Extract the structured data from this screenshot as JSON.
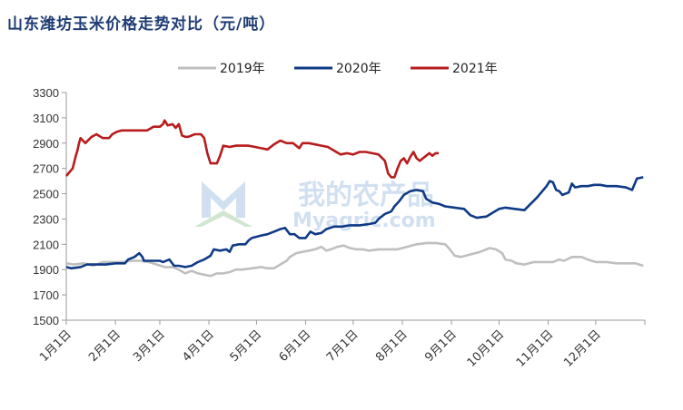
{
  "title": "山东潍坊玉米价格走势对比（元/吨）",
  "watermark": {
    "cn": "我的农产品",
    "en": "Myagric.com"
  },
  "colors": {
    "title": "#1f3c74",
    "s2019": "#bfbfbf",
    "s2020": "#0f3a86",
    "s2021": "#b81c1c"
  },
  "chart_data": {
    "type": "line",
    "title": "山东潍坊玉米价格走势对比（元/吨）",
    "ylim": [
      1500,
      3300
    ],
    "yticks": [
      1500,
      1700,
      1900,
      2100,
      2300,
      2500,
      2700,
      2900,
      3100,
      3300
    ],
    "xlim": [
      1,
      366
    ],
    "xticks": [
      {
        "label": "1月1日",
        "day": 1
      },
      {
        "label": "2月1日",
        "day": 32
      },
      {
        "label": "3月1日",
        "day": 60
      },
      {
        "label": "4月1日",
        "day": 91
      },
      {
        "label": "5月1日",
        "day": 121
      },
      {
        "label": "6月1日",
        "day": 152
      },
      {
        "label": "7月1日",
        "day": 182
      },
      {
        "label": "8月1日",
        "day": 213
      },
      {
        "label": "9月1日",
        "day": 244
      },
      {
        "label": "10月1日",
        "day": 274
      },
      {
        "label": "11月1日",
        "day": 305
      },
      {
        "label": "12月1日",
        "day": 335
      }
    ],
    "legend_position": "top-center",
    "grid": false,
    "series": [
      {
        "name": "2019年",
        "color": "#bfbfbf",
        "points": [
          [
            1,
            1950
          ],
          [
            6,
            1940
          ],
          [
            12,
            1950
          ],
          [
            18,
            1930
          ],
          [
            24,
            1960
          ],
          [
            30,
            1960
          ],
          [
            36,
            1960
          ],
          [
            42,
            1970
          ],
          [
            48,
            1970
          ],
          [
            53,
            1960
          ],
          [
            58,
            1940
          ],
          [
            63,
            1920
          ],
          [
            68,
            1920
          ],
          [
            72,
            1900
          ],
          [
            76,
            1870
          ],
          [
            80,
            1890
          ],
          [
            84,
            1870
          ],
          [
            88,
            1860
          ],
          [
            92,
            1850
          ],
          [
            96,
            1870
          ],
          [
            100,
            1870
          ],
          [
            104,
            1880
          ],
          [
            108,
            1900
          ],
          [
            112,
            1900
          ],
          [
            118,
            1910
          ],
          [
            124,
            1920
          ],
          [
            128,
            1910
          ],
          [
            132,
            1910
          ],
          [
            136,
            1940
          ],
          [
            140,
            1970
          ],
          [
            142,
            2000
          ],
          [
            146,
            2030
          ],
          [
            150,
            2040
          ],
          [
            154,
            2050
          ],
          [
            158,
            2060
          ],
          [
            162,
            2080
          ],
          [
            165,
            2050
          ],
          [
            168,
            2060
          ],
          [
            172,
            2080
          ],
          [
            176,
            2090
          ],
          [
            180,
            2070
          ],
          [
            184,
            2060
          ],
          [
            188,
            2060
          ],
          [
            192,
            2050
          ],
          [
            198,
            2060
          ],
          [
            204,
            2060
          ],
          [
            210,
            2060
          ],
          [
            216,
            2080
          ],
          [
            222,
            2100
          ],
          [
            228,
            2110
          ],
          [
            234,
            2110
          ],
          [
            240,
            2100
          ],
          [
            243,
            2060
          ],
          [
            246,
            2010
          ],
          [
            250,
            2000
          ],
          [
            256,
            2020
          ],
          [
            262,
            2040
          ],
          [
            268,
            2070
          ],
          [
            272,
            2060
          ],
          [
            276,
            2030
          ],
          [
            278,
            1980
          ],
          [
            282,
            1970
          ],
          [
            285,
            1950
          ],
          [
            290,
            1940
          ],
          [
            296,
            1960
          ],
          [
            302,
            1960
          ],
          [
            308,
            1960
          ],
          [
            312,
            1980
          ],
          [
            315,
            1970
          ],
          [
            320,
            2000
          ],
          [
            326,
            2000
          ],
          [
            330,
            1980
          ],
          [
            335,
            1960
          ],
          [
            342,
            1960
          ],
          [
            348,
            1950
          ],
          [
            354,
            1950
          ],
          [
            360,
            1950
          ],
          [
            365,
            1930
          ]
        ]
      },
      {
        "name": "2020年",
        "color": "#0f3a86",
        "points": [
          [
            1,
            1920
          ],
          [
            4,
            1910
          ],
          [
            10,
            1920
          ],
          [
            14,
            1940
          ],
          [
            20,
            1940
          ],
          [
            26,
            1940
          ],
          [
            32,
            1950
          ],
          [
            38,
            1950
          ],
          [
            40,
            1980
          ],
          [
            44,
            2000
          ],
          [
            47,
            2030
          ],
          [
            49,
            2000
          ],
          [
            50,
            1970
          ],
          [
            55,
            1970
          ],
          [
            60,
            1970
          ],
          [
            62,
            1960
          ],
          [
            66,
            1980
          ],
          [
            69,
            1930
          ],
          [
            72,
            1930
          ],
          [
            76,
            1920
          ],
          [
            80,
            1930
          ],
          [
            84,
            1960
          ],
          [
            88,
            1980
          ],
          [
            92,
            2010
          ],
          [
            94,
            2060
          ],
          [
            98,
            2050
          ],
          [
            102,
            2060
          ],
          [
            104,
            2040
          ],
          [
            106,
            2090
          ],
          [
            110,
            2100
          ],
          [
            114,
            2100
          ],
          [
            116,
            2130
          ],
          [
            118,
            2150
          ],
          [
            124,
            2170
          ],
          [
            128,
            2180
          ],
          [
            132,
            2200
          ],
          [
            136,
            2220
          ],
          [
            139,
            2230
          ],
          [
            142,
            2180
          ],
          [
            145,
            2180
          ],
          [
            148,
            2150
          ],
          [
            152,
            2150
          ],
          [
            155,
            2200
          ],
          [
            158,
            2180
          ],
          [
            162,
            2190
          ],
          [
            165,
            2220
          ],
          [
            170,
            2240
          ],
          [
            175,
            2240
          ],
          [
            180,
            2250
          ],
          [
            186,
            2250
          ],
          [
            192,
            2260
          ],
          [
            196,
            2270
          ],
          [
            198,
            2300
          ],
          [
            202,
            2340
          ],
          [
            206,
            2360
          ],
          [
            208,
            2400
          ],
          [
            211,
            2440
          ],
          [
            214,
            2490
          ],
          [
            218,
            2520
          ],
          [
            222,
            2530
          ],
          [
            226,
            2520
          ],
          [
            228,
            2460
          ],
          [
            232,
            2430
          ],
          [
            236,
            2420
          ],
          [
            240,
            2400
          ],
          [
            246,
            2390
          ],
          [
            252,
            2380
          ],
          [
            256,
            2330
          ],
          [
            260,
            2310
          ],
          [
            266,
            2320
          ],
          [
            270,
            2350
          ],
          [
            274,
            2380
          ],
          [
            278,
            2390
          ],
          [
            284,
            2380
          ],
          [
            290,
            2370
          ],
          [
            294,
            2420
          ],
          [
            298,
            2470
          ],
          [
            304,
            2560
          ],
          [
            306,
            2600
          ],
          [
            308,
            2590
          ],
          [
            310,
            2530
          ],
          [
            312,
            2520
          ],
          [
            314,
            2490
          ],
          [
            318,
            2510
          ],
          [
            320,
            2580
          ],
          [
            322,
            2550
          ],
          [
            326,
            2560
          ],
          [
            330,
            2560
          ],
          [
            334,
            2570
          ],
          [
            338,
            2570
          ],
          [
            342,
            2560
          ],
          [
            348,
            2560
          ],
          [
            354,
            2550
          ],
          [
            358,
            2530
          ],
          [
            361,
            2620
          ],
          [
            365,
            2630
          ]
        ]
      },
      {
        "name": "2021年",
        "color": "#b81c1c",
        "points": [
          [
            1,
            2640
          ],
          [
            3,
            2670
          ],
          [
            5,
            2700
          ],
          [
            7,
            2800
          ],
          [
            8,
            2840
          ],
          [
            9,
            2900
          ],
          [
            10,
            2940
          ],
          [
            13,
            2900
          ],
          [
            17,
            2950
          ],
          [
            20,
            2970
          ],
          [
            24,
            2940
          ],
          [
            28,
            2940
          ],
          [
            30,
            2970
          ],
          [
            33,
            2990
          ],
          [
            36,
            3000
          ],
          [
            42,
            3000
          ],
          [
            48,
            3000
          ],
          [
            52,
            3000
          ],
          [
            56,
            3030
          ],
          [
            60,
            3030
          ],
          [
            62,
            3050
          ],
          [
            63,
            3080
          ],
          [
            65,
            3040
          ],
          [
            68,
            3050
          ],
          [
            70,
            3020
          ],
          [
            72,
            3050
          ],
          [
            74,
            2960
          ],
          [
            76,
            2950
          ],
          [
            78,
            2950
          ],
          [
            82,
            2970
          ],
          [
            86,
            2970
          ],
          [
            88,
            2940
          ],
          [
            90,
            2820
          ],
          [
            92,
            2740
          ],
          [
            96,
            2740
          ],
          [
            98,
            2800
          ],
          [
            100,
            2880
          ],
          [
            104,
            2870
          ],
          [
            108,
            2880
          ],
          [
            112,
            2880
          ],
          [
            116,
            2880
          ],
          [
            120,
            2870
          ],
          [
            124,
            2860
          ],
          [
            128,
            2850
          ],
          [
            132,
            2890
          ],
          [
            136,
            2920
          ],
          [
            140,
            2900
          ],
          [
            144,
            2900
          ],
          [
            148,
            2860
          ],
          [
            150,
            2900
          ],
          [
            154,
            2900
          ],
          [
            158,
            2890
          ],
          [
            162,
            2880
          ],
          [
            166,
            2870
          ],
          [
            170,
            2840
          ],
          [
            174,
            2810
          ],
          [
            178,
            2820
          ],
          [
            182,
            2810
          ],
          [
            186,
            2830
          ],
          [
            190,
            2830
          ],
          [
            194,
            2820
          ],
          [
            198,
            2810
          ],
          [
            202,
            2760
          ],
          [
            204,
            2660
          ],
          [
            206,
            2630
          ],
          [
            208,
            2630
          ],
          [
            210,
            2700
          ],
          [
            212,
            2760
          ],
          [
            214,
            2780
          ],
          [
            216,
            2740
          ],
          [
            218,
            2790
          ],
          [
            220,
            2830
          ],
          [
            222,
            2780
          ],
          [
            224,
            2760
          ],
          [
            226,
            2780
          ],
          [
            228,
            2800
          ],
          [
            230,
            2820
          ],
          [
            232,
            2800
          ],
          [
            234,
            2820
          ],
          [
            236,
            2820
          ]
        ]
      }
    ]
  }
}
